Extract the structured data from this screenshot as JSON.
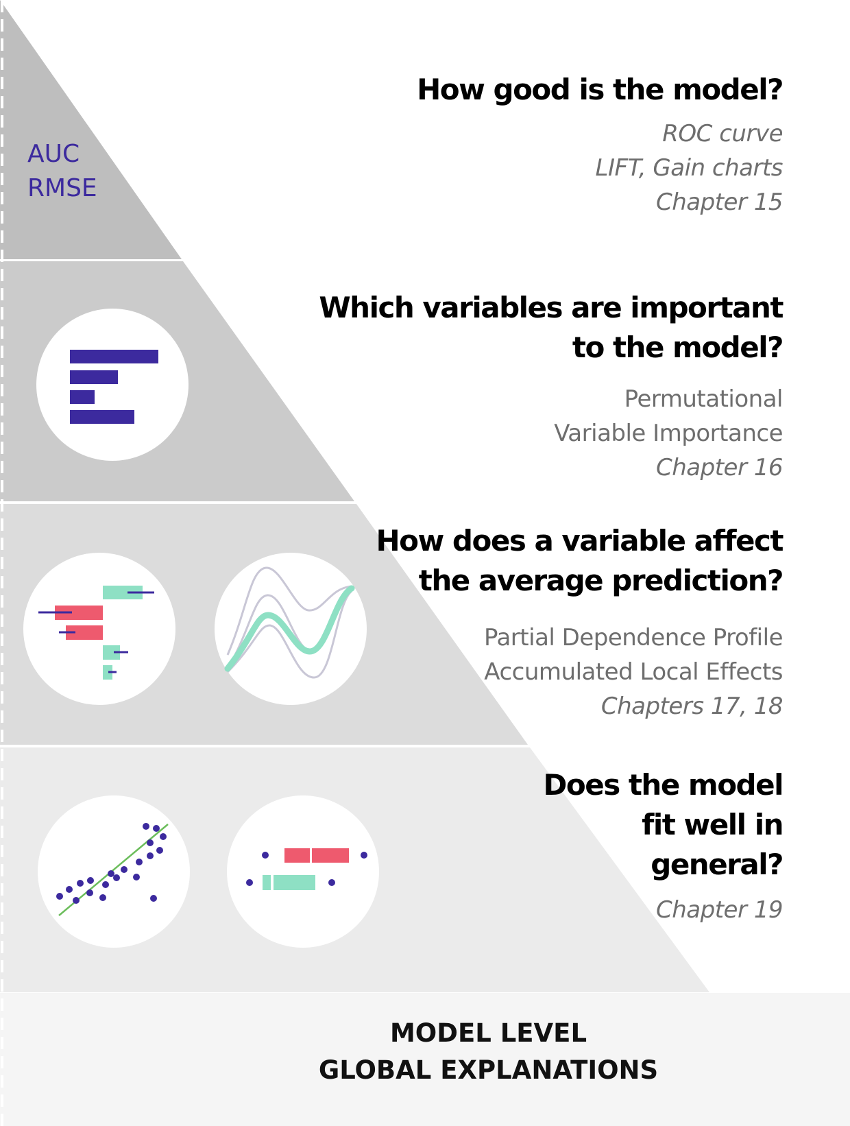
{
  "levels": [
    {
      "question": "How good is the model?",
      "methods": [
        "ROC curve",
        "LIFT, Gain charts"
      ],
      "methods_italic": true,
      "chapter": "Chapter 15",
      "metrics": [
        "AUC",
        "RMSE"
      ]
    },
    {
      "question": "Which variables are important\nto the model?",
      "methods": [
        "Permutational",
        "Variable Importance"
      ],
      "methods_italic": false,
      "chapter": "Chapter 16"
    },
    {
      "question": "How does a variable affect\nthe average prediction?",
      "methods": [
        "Partial Dependence Profile",
        "Accumulated Local Effects"
      ],
      "methods_italic": false,
      "chapter": "Chapters 17, 18"
    },
    {
      "question": "Does the model\nfit well in\ngeneral?",
      "methods": [],
      "methods_italic": false,
      "chapter": "Chapter 19"
    }
  ],
  "footer": {
    "line1": "MODEL LEVEL",
    "line2": "GLOBAL EXPLANATIONS"
  },
  "colors": {
    "tier1": "#bebebe",
    "tier2": "#cbcbcb",
    "tier3": "#dcdcdc",
    "tier4": "#ebebeb",
    "base": "#f5f5f5",
    "purple": "#3c2a9e",
    "coral": "#ee5a6e",
    "mint": "#8ee0c4",
    "curve_gray": "#c9c7d6",
    "fit_line": "#6bbd5b"
  }
}
